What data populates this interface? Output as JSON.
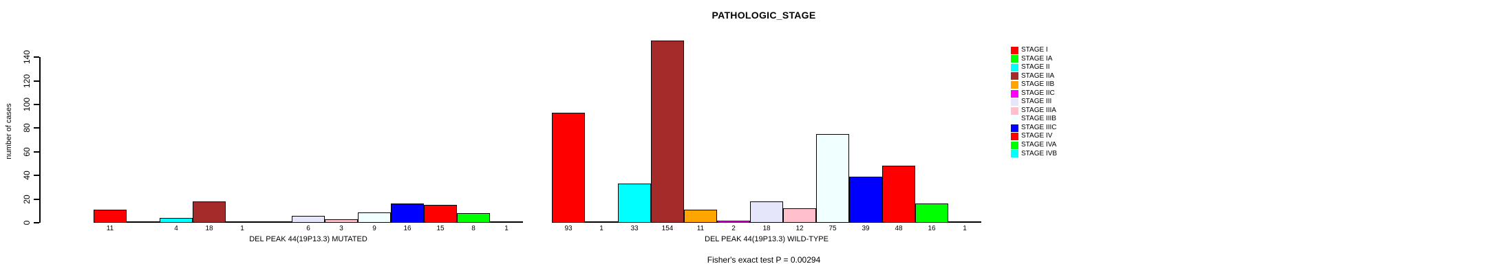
{
  "chart_data": {
    "type": "bar",
    "title": "PATHOLOGIC_STAGE",
    "ylabel": "number of cases",
    "yticks": [
      0,
      20,
      40,
      60,
      80,
      100,
      120,
      140
    ],
    "ylim": [
      0,
      155
    ],
    "grid": false,
    "legend_position": "right",
    "annotation": "Fisher's exact test P = 0.00294",
    "stages": [
      {
        "name": "STAGE I",
        "color": "#FF0000"
      },
      {
        "name": "STAGE IA",
        "color": "#00FF00"
      },
      {
        "name": "STAGE II",
        "color": "#00FFFF"
      },
      {
        "name": "STAGE IIA",
        "color": "#A52A2A"
      },
      {
        "name": "STAGE IIB",
        "color": "#FFA500"
      },
      {
        "name": "STAGE IIC",
        "color": "#FF00FF"
      },
      {
        "name": "STAGE III",
        "color": "#E6E6FA"
      },
      {
        "name": "STAGE IIIA",
        "color": "#FFC0CB"
      },
      {
        "name": "STAGE IIIB",
        "color": "#F0FFFF"
      },
      {
        "name": "STAGE IIIC",
        "color": "#0000FF"
      },
      {
        "name": "STAGE IV",
        "color": "#FF0000"
      },
      {
        "name": "STAGE IVA",
        "color": "#00FF00"
      },
      {
        "name": "STAGE IVB",
        "color": "#00FFFF"
      }
    ],
    "groups": [
      {
        "label": "DEL PEAK 44(19P13.3) MUTATED",
        "values": [
          11,
          0,
          4,
          18,
          1,
          0,
          6,
          3,
          9,
          16,
          15,
          8,
          1
        ]
      },
      {
        "label": "DEL PEAK 44(19P13.3) WILD-TYPE",
        "values": [
          93,
          1,
          33,
          154,
          11,
          2,
          18,
          12,
          75,
          39,
          48,
          16,
          1
        ]
      }
    ]
  }
}
